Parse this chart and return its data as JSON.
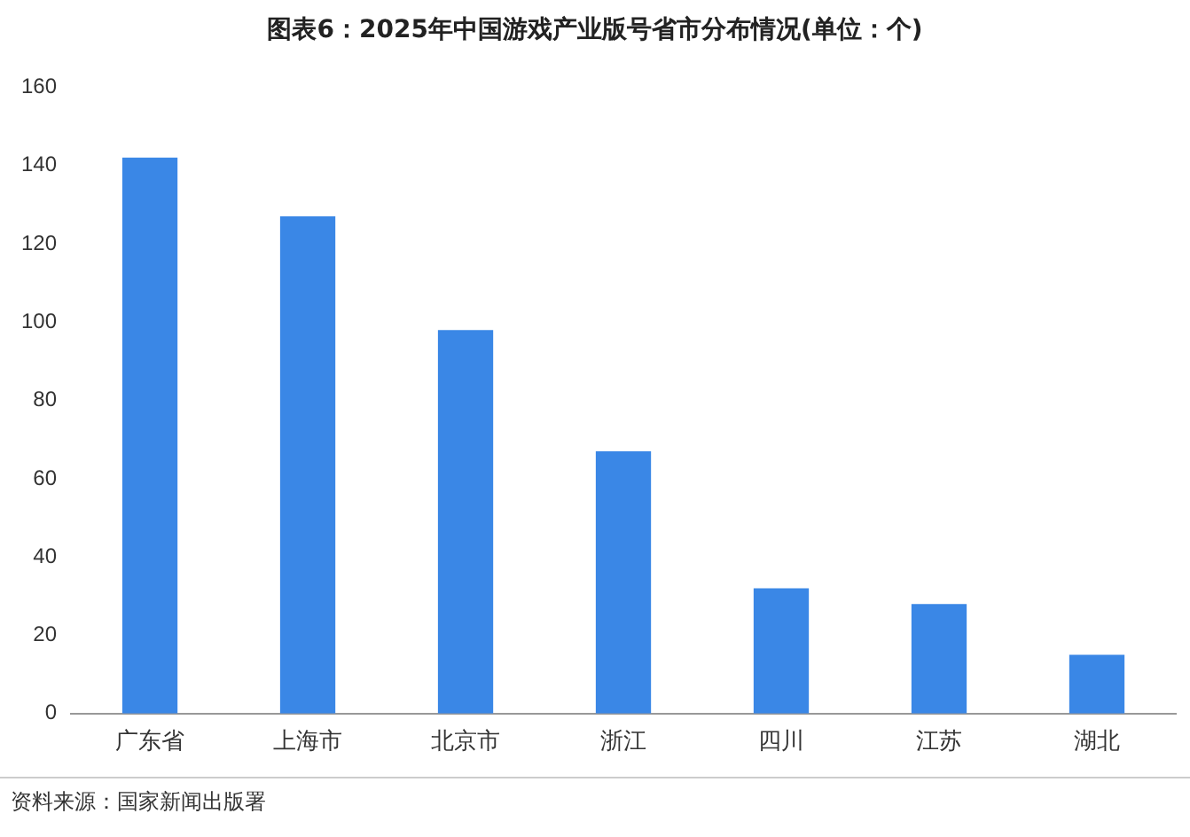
{
  "chart_data": {
    "type": "bar",
    "title": "图表6：2025年中国游戏产业版号省市分布情况(单位：个)",
    "categories": [
      "广东省",
      "上海市",
      "北京市",
      "浙江",
      "四川",
      "江苏",
      "湖北"
    ],
    "values": [
      142,
      127,
      98,
      67,
      32,
      28,
      15
    ],
    "color": "#3a87e6",
    "ylim": [
      0,
      160
    ],
    "yticks": [
      0,
      20,
      40,
      60,
      80,
      100,
      120,
      140,
      160
    ],
    "grid": false,
    "annotations": [
      "资料来源：国家新闻出版署"
    ]
  }
}
